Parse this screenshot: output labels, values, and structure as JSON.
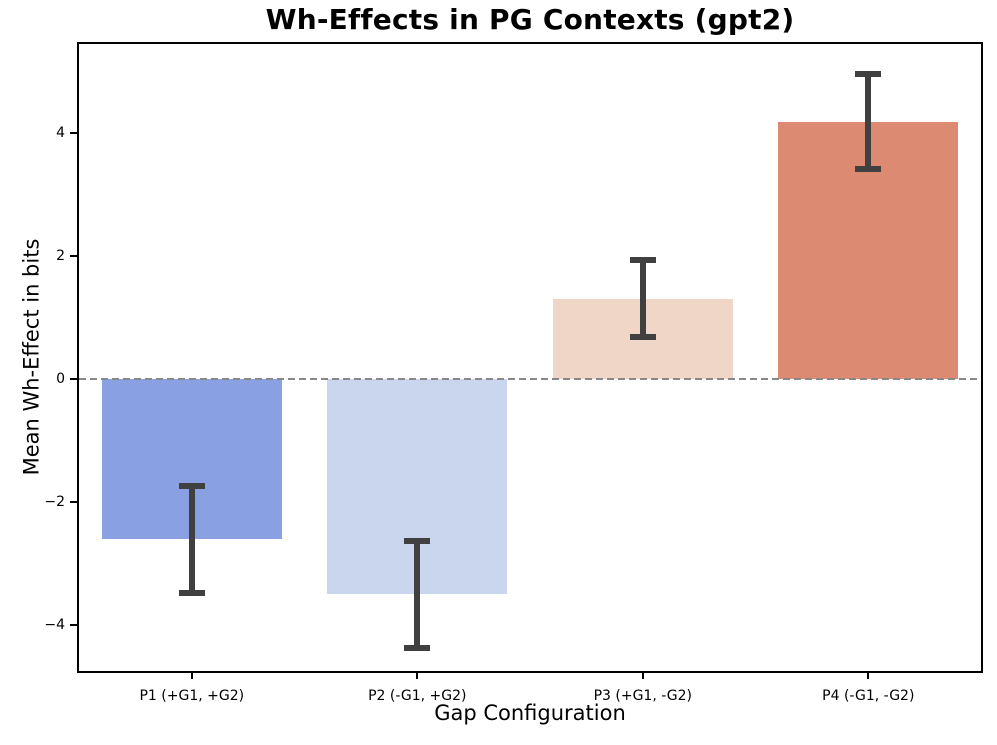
{
  "chart_data": {
    "type": "bar",
    "title": "Wh-Effects in PG Contexts (gpt2)",
    "xlabel": "Gap Configuration",
    "ylabel": "Mean Wh-Effect in bits",
    "categories": [
      "P1 (+G1, +G2)",
      "P2 (-G1, +G2)",
      "P3 (+G1, -G2)",
      "P4 (-G1, -G2)"
    ],
    "values": [
      -2.61,
      -3.5,
      1.31,
      4.19
    ],
    "errors": [
      0.87,
      0.87,
      0.63,
      0.77
    ],
    "bar_colors": [
      "#89A1E2",
      "#CAD5EE",
      "#EFD6C6",
      "#DC8A72"
    ],
    "error_bar_color": "#404040",
    "zero_line_color": "#888888",
    "spine_color": "#000000",
    "background": "#FFFFFF",
    "yticks": [
      -4,
      -2,
      0,
      2,
      4
    ],
    "ytick_labels": [
      "−4",
      "−2",
      "0",
      "2",
      "4"
    ],
    "ylim": [
      -4.75,
      5.45
    ],
    "bar_width_fraction": 0.8,
    "grid": false,
    "legend": false
  }
}
